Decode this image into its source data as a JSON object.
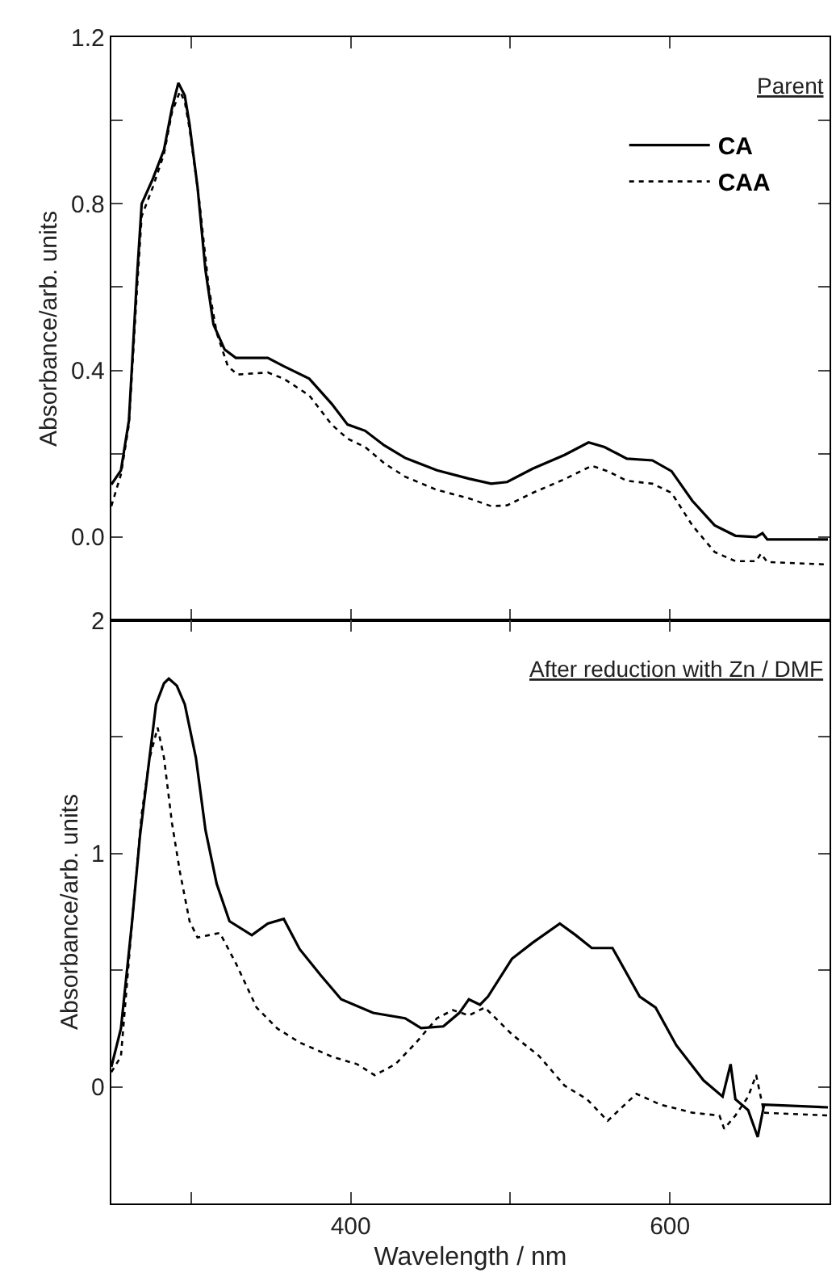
{
  "chart_data": [
    {
      "type": "line",
      "ylabel": "Absorbance/arb. units",
      "annotations": [
        "Parent"
      ],
      "xlim": [
        250,
        700
      ],
      "xticks": [
        {
          "value": 300,
          "label": null
        },
        {
          "value": 400,
          "label": null
        },
        {
          "value": 500,
          "label": null
        },
        {
          "value": 600,
          "label": null
        }
      ],
      "ylim": [
        -0.2,
        1.2
      ],
      "yticks": [
        {
          "value": 0,
          "label": "0.0"
        },
        {
          "value": 0.2,
          "label": null
        },
        0.4,
        {
          "value": 0.6,
          "label": null
        },
        0.8,
        {
          "value": 1.0,
          "label": null
        },
        1.2
      ],
      "tick_labels": "y",
      "legend": "top right",
      "grid": false,
      "marker": "none",
      "series": [
        {
          "name": "CA",
          "color": "#000000",
          "line_style": "solid",
          "x": [
            250,
            256,
            261,
            266,
            269,
            276,
            283,
            288,
            292,
            296,
            299,
            304,
            309,
            314,
            321,
            328,
            348,
            358,
            374,
            388,
            398,
            409,
            421,
            434,
            454,
            474,
            488,
            498,
            514,
            534,
            549,
            559,
            573,
            589,
            601,
            614,
            628,
            641,
            654,
            658,
            661,
            699
          ],
          "values": [
            0.126,
            0.16,
            0.28,
            0.62,
            0.8,
            0.86,
            0.93,
            1.03,
            1.09,
            1.06,
            0.99,
            0.84,
            0.64,
            0.51,
            0.45,
            0.43,
            0.43,
            0.41,
            0.38,
            0.32,
            0.27,
            0.255,
            0.22,
            0.19,
            0.16,
            0.14,
            0.128,
            0.132,
            0.164,
            0.197,
            0.227,
            0.216,
            0.188,
            0.184,
            0.158,
            0.087,
            0.028,
            0.003,
            0.0,
            0.009,
            -0.006,
            -0.006
          ]
        },
        {
          "name": "CAA",
          "color": "#000000",
          "line_style": "dotted",
          "x": [
            250,
            256,
            261,
            266,
            269,
            276,
            283,
            288,
            293,
            296,
            299,
            305,
            311,
            316,
            323,
            329,
            348,
            358,
            374,
            388,
            398,
            409,
            421,
            434,
            454,
            474,
            488,
            498,
            514,
            534,
            551,
            561,
            573,
            589,
            601,
            614,
            628,
            641,
            654,
            657,
            661,
            699
          ],
          "values": [
            0.074,
            0.15,
            0.27,
            0.59,
            0.77,
            0.84,
            0.92,
            1.02,
            1.07,
            1.045,
            0.98,
            0.81,
            0.6,
            0.49,
            0.41,
            0.39,
            0.395,
            0.38,
            0.34,
            0.27,
            0.236,
            0.216,
            0.177,
            0.145,
            0.113,
            0.093,
            0.074,
            0.076,
            0.106,
            0.139,
            0.171,
            0.158,
            0.135,
            0.128,
            0.106,
            0.028,
            -0.036,
            -0.058,
            -0.058,
            -0.04,
            -0.06,
            -0.066
          ]
        }
      ]
    },
    {
      "type": "line",
      "ylabel": "Absorbance/arb. units",
      "xlabel": "Wavelength / nm",
      "annotations": [
        "After reduction with Zn / DMF"
      ],
      "xlim": [
        250,
        700
      ],
      "xticks": [
        {
          "value": 300,
          "label": null
        },
        400,
        {
          "value": 500,
          "label": null
        },
        600
      ],
      "ylim": [
        -0.5,
        2
      ],
      "yticks": [
        0,
        {
          "value": 0.5,
          "label": null
        },
        1,
        {
          "value": 1.5,
          "label": null
        },
        2
      ],
      "grid": false,
      "marker": "none",
      "series": [
        {
          "color": "#000000",
          "line_style": "solid",
          "x": [
            250,
            256,
            263,
            268,
            273,
            278,
            283,
            286,
            291,
            296,
            303,
            309,
            316,
            324,
            338,
            348,
            358,
            368,
            381,
            394,
            414,
            434,
            444,
            458,
            468,
            474,
            481,
            486,
            501,
            514,
            531,
            541,
            551,
            564,
            581,
            591,
            604,
            621,
            633,
            638,
            641,
            649,
            655,
            659,
            699
          ],
          "values": [
            0.086,
            0.25,
            0.71,
            1.08,
            1.36,
            1.64,
            1.73,
            1.75,
            1.72,
            1.64,
            1.41,
            1.1,
            0.87,
            0.71,
            0.65,
            0.7,
            0.72,
            0.59,
            0.48,
            0.375,
            0.317,
            0.294,
            0.252,
            0.259,
            0.317,
            0.375,
            0.352,
            0.387,
            0.549,
            0.618,
            0.7,
            0.65,
            0.595,
            0.595,
            0.387,
            0.34,
            0.178,
            0.028,
            -0.042,
            0.097,
            -0.053,
            -0.1,
            -0.215,
            -0.076,
            -0.088
          ]
        },
        {
          "color": "#000000",
          "line_style": "dotted",
          "x": [
            250,
            256,
            263,
            269,
            274,
            279,
            283,
            288,
            293,
            299,
            304,
            311,
            318,
            328,
            341,
            354,
            368,
            388,
            404,
            415,
            428,
            441,
            454,
            464,
            474,
            484,
            501,
            518,
            534,
            548,
            561,
            568,
            579,
            594,
            614,
            631,
            634,
            641,
            649,
            654,
            659,
            699
          ],
          "values": [
            0.063,
            0.13,
            0.71,
            1.17,
            1.41,
            1.54,
            1.41,
            1.13,
            0.92,
            0.71,
            0.64,
            0.65,
            0.66,
            0.53,
            0.34,
            0.25,
            0.19,
            0.13,
            0.097,
            0.05,
            0.097,
            0.19,
            0.294,
            0.329,
            0.306,
            0.34,
            0.225,
            0.132,
            0.005,
            -0.053,
            -0.146,
            -0.1,
            -0.03,
            -0.076,
            -0.111,
            -0.123,
            -0.18,
            -0.123,
            -0.042,
            0.051,
            -0.111,
            -0.123
          ]
        }
      ]
    }
  ]
}
